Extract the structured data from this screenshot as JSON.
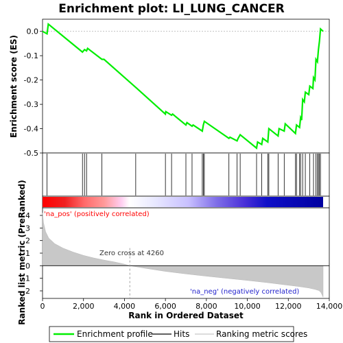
{
  "chart_data": {
    "type": "line",
    "title": "Enrichment plot: LI_LUNG_CANCER",
    "xlabel": "Rank in Ordered Dataset",
    "ylabel_top": "Enrichment score (ES)",
    "ylabel_bottom": "Ranked list metric (PreRanked)",
    "x_ticks": [
      "0",
      "2,000",
      "4,000",
      "6,000",
      "8,000",
      "10,000",
      "12,000",
      "14,000"
    ],
    "x_tick_values": [
      0,
      2000,
      4000,
      6000,
      8000,
      10000,
      12000,
      14000
    ],
    "es_ticks": [
      "0.0",
      "-0.1",
      "-0.2",
      "-0.3",
      "-0.4",
      "-0.5"
    ],
    "es_tick_values": [
      0.0,
      -0.1,
      -0.2,
      -0.3,
      -0.4,
      -0.5
    ],
    "metric_ticks": [
      "4",
      "3",
      "2",
      "1",
      "0",
      "-1",
      "-2"
    ],
    "metric_tick_values": [
      4,
      3,
      2,
      1,
      0,
      -1,
      -2
    ],
    "xlim": [
      0,
      14000
    ],
    "es_ylim": [
      -0.5,
      0.05
    ],
    "metric_ylim": [
      -2.6,
      4.6
    ],
    "n_genes": 13700,
    "zero_cross_label": "Zero cross at 4260",
    "zero_cross": 4260,
    "pos_label": "'na_pos' (positively correlated)",
    "neg_label": "'na_neg' (negatively correlated)",
    "series": [
      {
        "name": "Enrichment profile",
        "color": "#00ee00",
        "x": [
          0,
          220,
          280,
          1950,
          2050,
          2150,
          2200,
          2900,
          3000,
          4550,
          6000,
          6020,
          6300,
          6350,
          7000,
          7050,
          7300,
          7350,
          7800,
          7850,
          7900,
          9100,
          9150,
          9500,
          9550,
          9650,
          10450,
          10500,
          10700,
          10750,
          11000,
          11050,
          11500,
          11550,
          11800,
          11850,
          12350,
          12400,
          12550,
          12600,
          12650,
          12700,
          12780,
          12830,
          13000,
          13050,
          13200,
          13230,
          13300,
          13350,
          13420,
          13470,
          13520,
          13570,
          13700
        ],
        "y": [
          0.0,
          -0.01,
          0.03,
          -0.085,
          -0.075,
          -0.08,
          -0.07,
          -0.115,
          -0.115,
          -0.23,
          -0.34,
          -0.33,
          -0.345,
          -0.34,
          -0.385,
          -0.375,
          -0.39,
          -0.385,
          -0.41,
          -0.385,
          -0.37,
          -0.44,
          -0.435,
          -0.45,
          -0.44,
          -0.425,
          -0.48,
          -0.455,
          -0.465,
          -0.44,
          -0.455,
          -0.4,
          -0.43,
          -0.4,
          -0.41,
          -0.38,
          -0.42,
          -0.385,
          -0.395,
          -0.355,
          -0.365,
          -0.28,
          -0.29,
          -0.25,
          -0.26,
          -0.225,
          -0.235,
          -0.19,
          -0.2,
          -0.115,
          -0.125,
          -0.075,
          -0.04,
          0.01,
          0.0
        ]
      }
    ],
    "hits": [
      220,
      1950,
      2050,
      2150,
      2900,
      4550,
      6000,
      6300,
      7000,
      7300,
      7800,
      7850,
      7900,
      9100,
      9500,
      9650,
      10450,
      10700,
      11000,
      11050,
      11500,
      11800,
      12350,
      12400,
      12550,
      12600,
      12700,
      12830,
      13050,
      13230,
      13350,
      13420,
      13470,
      13520,
      13570
    ],
    "metric_curve": {
      "x": [
        0,
        50,
        150,
        300,
        600,
        1000,
        1500,
        2000,
        2500,
        3000,
        3500,
        4000,
        4260,
        5000,
        6000,
        7000,
        8000,
        9000,
        10000,
        11000,
        12000,
        12500,
        13000,
        13300,
        13500,
        13600,
        13700
      ],
      "y": [
        4.2,
        3.4,
        2.7,
        2.2,
        1.75,
        1.4,
        1.08,
        0.82,
        0.62,
        0.45,
        0.3,
        0.12,
        0.0,
        -0.2,
        -0.45,
        -0.65,
        -0.83,
        -1.0,
        -1.17,
        -1.35,
        -1.55,
        -1.65,
        -1.77,
        -1.88,
        -1.98,
        -2.15,
        -2.5
      ]
    },
    "legend": [
      {
        "label": "Enrichment profile",
        "color": "#00ee00"
      },
      {
        "label": "Hits",
        "color": "#000000"
      },
      {
        "label": "Ranking metric scores",
        "color": "#c8c8c8"
      }
    ]
  }
}
